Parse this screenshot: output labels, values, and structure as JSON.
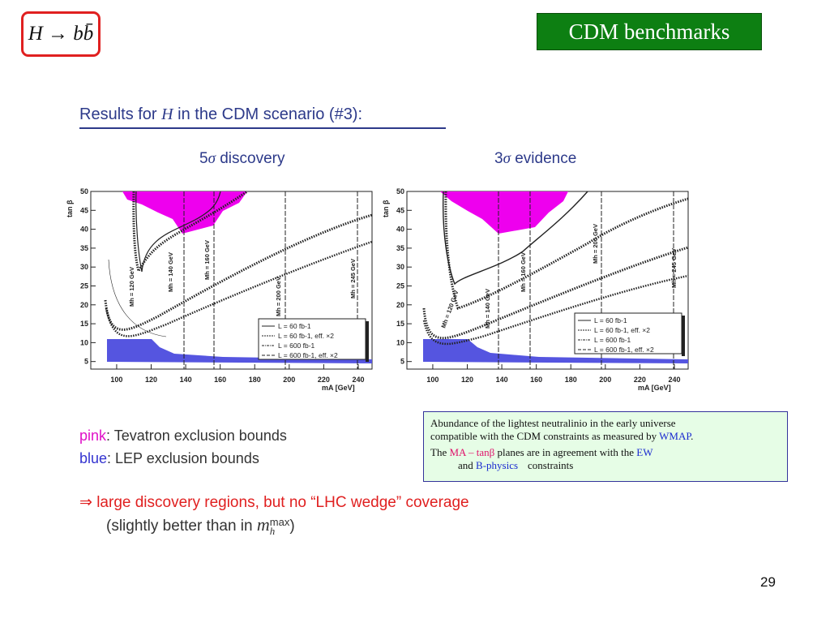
{
  "header": {
    "formula": "H → bb̄",
    "badge": "CDM benchmarks"
  },
  "results_title": {
    "prefix": "Results for ",
    "var": "H",
    "suffix": " in the CDM scenario (#3):"
  },
  "plots": [
    {
      "title_num": "5",
      "title_sigma": "σ",
      "title_text": " discovery",
      "ylabel": "tan β",
      "xlabel": "mA [GeV]",
      "xticks": [
        "100",
        "120",
        "140",
        "160",
        "180",
        "200",
        "220",
        "240"
      ],
      "yticks": [
        "5",
        "10",
        "15",
        "20",
        "25",
        "30",
        "35",
        "40",
        "45",
        "50"
      ],
      "mh_labels": [
        "Mh = 120 GeV",
        "Mh = 140 GeV",
        "Mh = 160 GeV",
        "Mh = 200 GeV",
        "Mh = 245 GeV"
      ],
      "legend": [
        "L = 60 fb-1",
        "L = 60 fb-1, eff. ×2",
        "L = 600 fb-1",
        "L = 600 fb-1, eff. ×2"
      ]
    },
    {
      "title_num": "3",
      "title_sigma": "σ",
      "title_text": " evidence",
      "ylabel": "tan β",
      "xlabel": "mA [GeV]",
      "xticks": [
        "100",
        "120",
        "140",
        "160",
        "180",
        "200",
        "220",
        "240"
      ],
      "yticks": [
        "5",
        "10",
        "15",
        "20",
        "25",
        "30",
        "35",
        "40",
        "45",
        "50"
      ],
      "mh_labels": [
        "Mh = 120 GeV",
        "Mh = 140 GeV",
        "Mh = 160 GeV",
        "Mh = 200 GeV",
        "Mh = 245 GeV"
      ],
      "legend": [
        "L = 60 fb-1",
        "L = 60 fb-1, eff. ×2",
        "L = 600 fb-1",
        "L = 600 fb-1, eff. ×2"
      ]
    }
  ],
  "legend_text": {
    "pink_word": "pink",
    "pink_rest": ": Tevatron exclusion bounds",
    "blue_word": "blue",
    "blue_rest": ": LEP exclusion bounds"
  },
  "conclusion": {
    "line1": "⇒ large discovery regions, but no “LHC wedge” coverage",
    "line2_prefix": "(slightly better than in ",
    "line2_m": "m",
    "line2_sup": "max",
    "line2_sub": "h",
    "line2_suffix": ")"
  },
  "note": {
    "line1": "Abundance of the lightest neutralinio in the early universe",
    "line2": "compatible with the CDM constraints as measured by ",
    "wmap": "WMAP",
    "period": ".",
    "line3_prefix": "The ",
    "ma": "MA",
    "dash": " – ",
    "tanb": "tanβ",
    "line3_mid": " planes are in agreement with the ",
    "ew": "EW",
    "line4_and": "and ",
    "bphys": "B-physics",
    "line4_end": "constraints"
  },
  "page_number": "29",
  "colors": {
    "tevatron_pink": "#ee00ee",
    "lep_blue": "#5555e0",
    "badge_green": "#0d7f12",
    "title_blue": "#2d3a8a",
    "box_red": "#e02020"
  }
}
